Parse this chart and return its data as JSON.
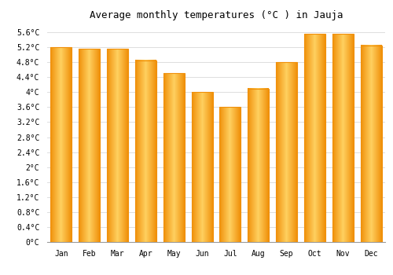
{
  "title": "Average monthly temperatures (°C ) in Jauja",
  "months": [
    "Jan",
    "Feb",
    "Mar",
    "Apr",
    "May",
    "Jun",
    "Jul",
    "Aug",
    "Sep",
    "Oct",
    "Nov",
    "Dec"
  ],
  "values": [
    5.2,
    5.15,
    5.15,
    4.85,
    4.5,
    4.0,
    3.6,
    4.1,
    4.8,
    5.55,
    5.55,
    5.25
  ],
  "bar_color_center": "#FFD060",
  "bar_color_edge": "#F0900A",
  "ylim": [
    0,
    5.8
  ],
  "ytick_step": 0.4,
  "background_color": "#FFFFFF",
  "grid_color": "#DDDDDD",
  "title_fontsize": 9,
  "tick_fontsize": 7,
  "font_family": "monospace"
}
